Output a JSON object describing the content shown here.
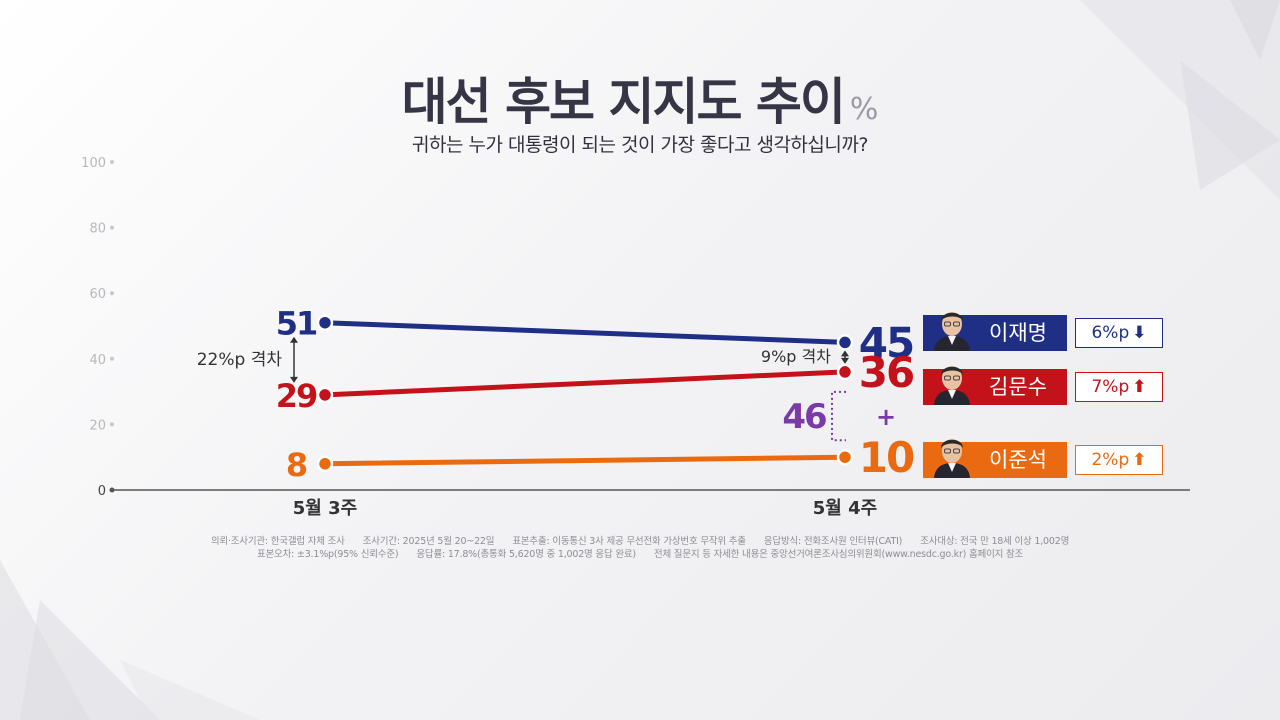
{
  "title": "대선 후보 지지도 추이",
  "unit": "%",
  "subtitle": "귀하는 누가 대통령이 되는 것이 가장 좋다고 생각하십니까?",
  "chart_data": {
    "type": "line",
    "x": [
      "5월 3주",
      "5월 4주"
    ],
    "ylim": [
      0,
      100
    ],
    "yticks": [
      0,
      20,
      40,
      60,
      80,
      100
    ],
    "series": [
      {
        "name": "이재명",
        "values": [
          51,
          45
        ],
        "color": "#1f2f85",
        "change": "6%p",
        "direction": "down"
      },
      {
        "name": "김문수",
        "values": [
          29,
          36
        ],
        "color": "#c4121b",
        "change": "7%p",
        "direction": "up"
      },
      {
        "name": "이준석",
        "values": [
          8,
          10
        ],
        "color": "#ea6a12",
        "change": "2%p",
        "direction": "up"
      }
    ],
    "annotations": {
      "gap_left": "22%p 격차",
      "gap_right": "9%p 격차",
      "combined_value": "46",
      "combined_plus": "+",
      "combined_color": "#7a3aa8"
    }
  },
  "footer": {
    "line1": [
      "의뢰·조사기관: 한국갤럽 자체 조사",
      "조사기간: 2025년 5월 20~22일",
      "표본추출: 이동통신 3사 제공 무선전화 가상번호 무작위 추출",
      "응답방식: 전화조사원 인터뷰(CATI)",
      "조사대상: 전국 만 18세 이상 1,002명"
    ],
    "line2": [
      "표본오차: ±3.1%p(95% 신뢰수준)",
      "응답률: 17.8%(총통화 5,620명 중 1,002명 응답 완료)",
      "전체 질문지 등 자세한 내용은 중앙선거여론조사심의위원회(www.nesdc.go.kr) 홈페이지 참조"
    ]
  }
}
